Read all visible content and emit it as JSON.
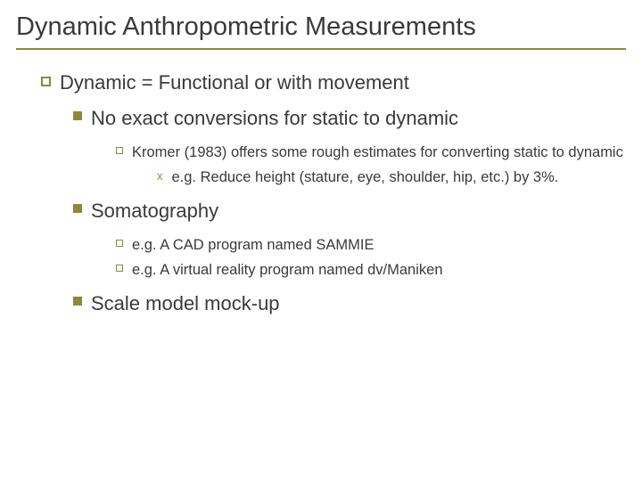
{
  "colors": {
    "accent": "#8a8a3a",
    "text": "#3a3a3a",
    "background": "#ffffff"
  },
  "typography": {
    "font_family": "Verdana",
    "title_fontsize": 29,
    "level1_fontsize": 22,
    "level2_fontsize": 22,
    "level3_fontsize": 16.5,
    "level4_fontsize": 16.5
  },
  "title": "Dynamic Anthropometric Measurements",
  "body": {
    "l1": {
      "text": "Dynamic = Functional or with movement",
      "sub": {
        "a": {
          "text": "No exact conversions for static to dynamic",
          "sub": {
            "a": {
              "text": "Kromer (1983) offers some rough estimates for converting static to dynamic",
              "sub": {
                "a": {
                  "text": "e.g. Reduce height (stature, eye, shoulder, hip, etc.) by 3%."
                }
              }
            }
          }
        },
        "b": {
          "text": "Somatography",
          "sub": {
            "a": {
              "text": "e.g. A CAD program named SAMMIE"
            },
            "b": {
              "text": "e.g. A virtual reality program named dv/Maniken"
            }
          }
        },
        "c": {
          "text": "Scale model  mock-up"
        }
      }
    }
  }
}
